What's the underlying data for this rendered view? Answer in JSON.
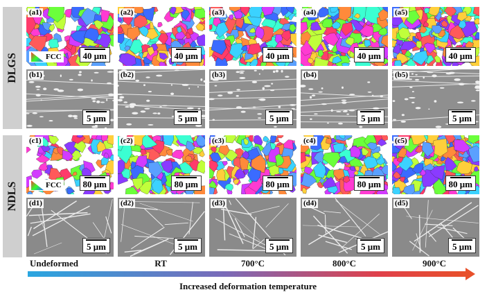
{
  "groups": [
    {
      "label": "DLGS"
    },
    {
      "label": "NDLS"
    }
  ],
  "rows": [
    {
      "type": "ebsd",
      "labels": [
        "(a1)",
        "(a2)",
        "(a3)",
        "(a4)",
        "(a5)"
      ],
      "scale": "40 μm"
    },
    {
      "type": "sem_fine",
      "labels": [
        "(b1)",
        "(b2)",
        "(b3)",
        "(b4)",
        "(b5)"
      ],
      "scale": "5 μm"
    },
    {
      "type": "ebsd",
      "labels": [
        "(c1)",
        "(c2)",
        "(c3)",
        "(c4)",
        "(c5)"
      ],
      "scale": "80 μm"
    },
    {
      "type": "sem_lines",
      "labels": [
        "(d1)",
        "(d2)",
        "(d3)",
        "(d4)",
        "(d5)"
      ],
      "scale": "5 μm"
    }
  ],
  "legend_label": "FCC",
  "conditions": [
    "Undeformed",
    "RT",
    "700°C",
    "800°C",
    "900°C"
  ],
  "axis_title": "Increased deformation temperature",
  "colors": {
    "arrow_start": "#2aa6e0",
    "arrow_end": "#e8502a",
    "sidebar": "#cfcfcf"
  },
  "icons": {
    "legend": "ipf-triangle-icon"
  }
}
